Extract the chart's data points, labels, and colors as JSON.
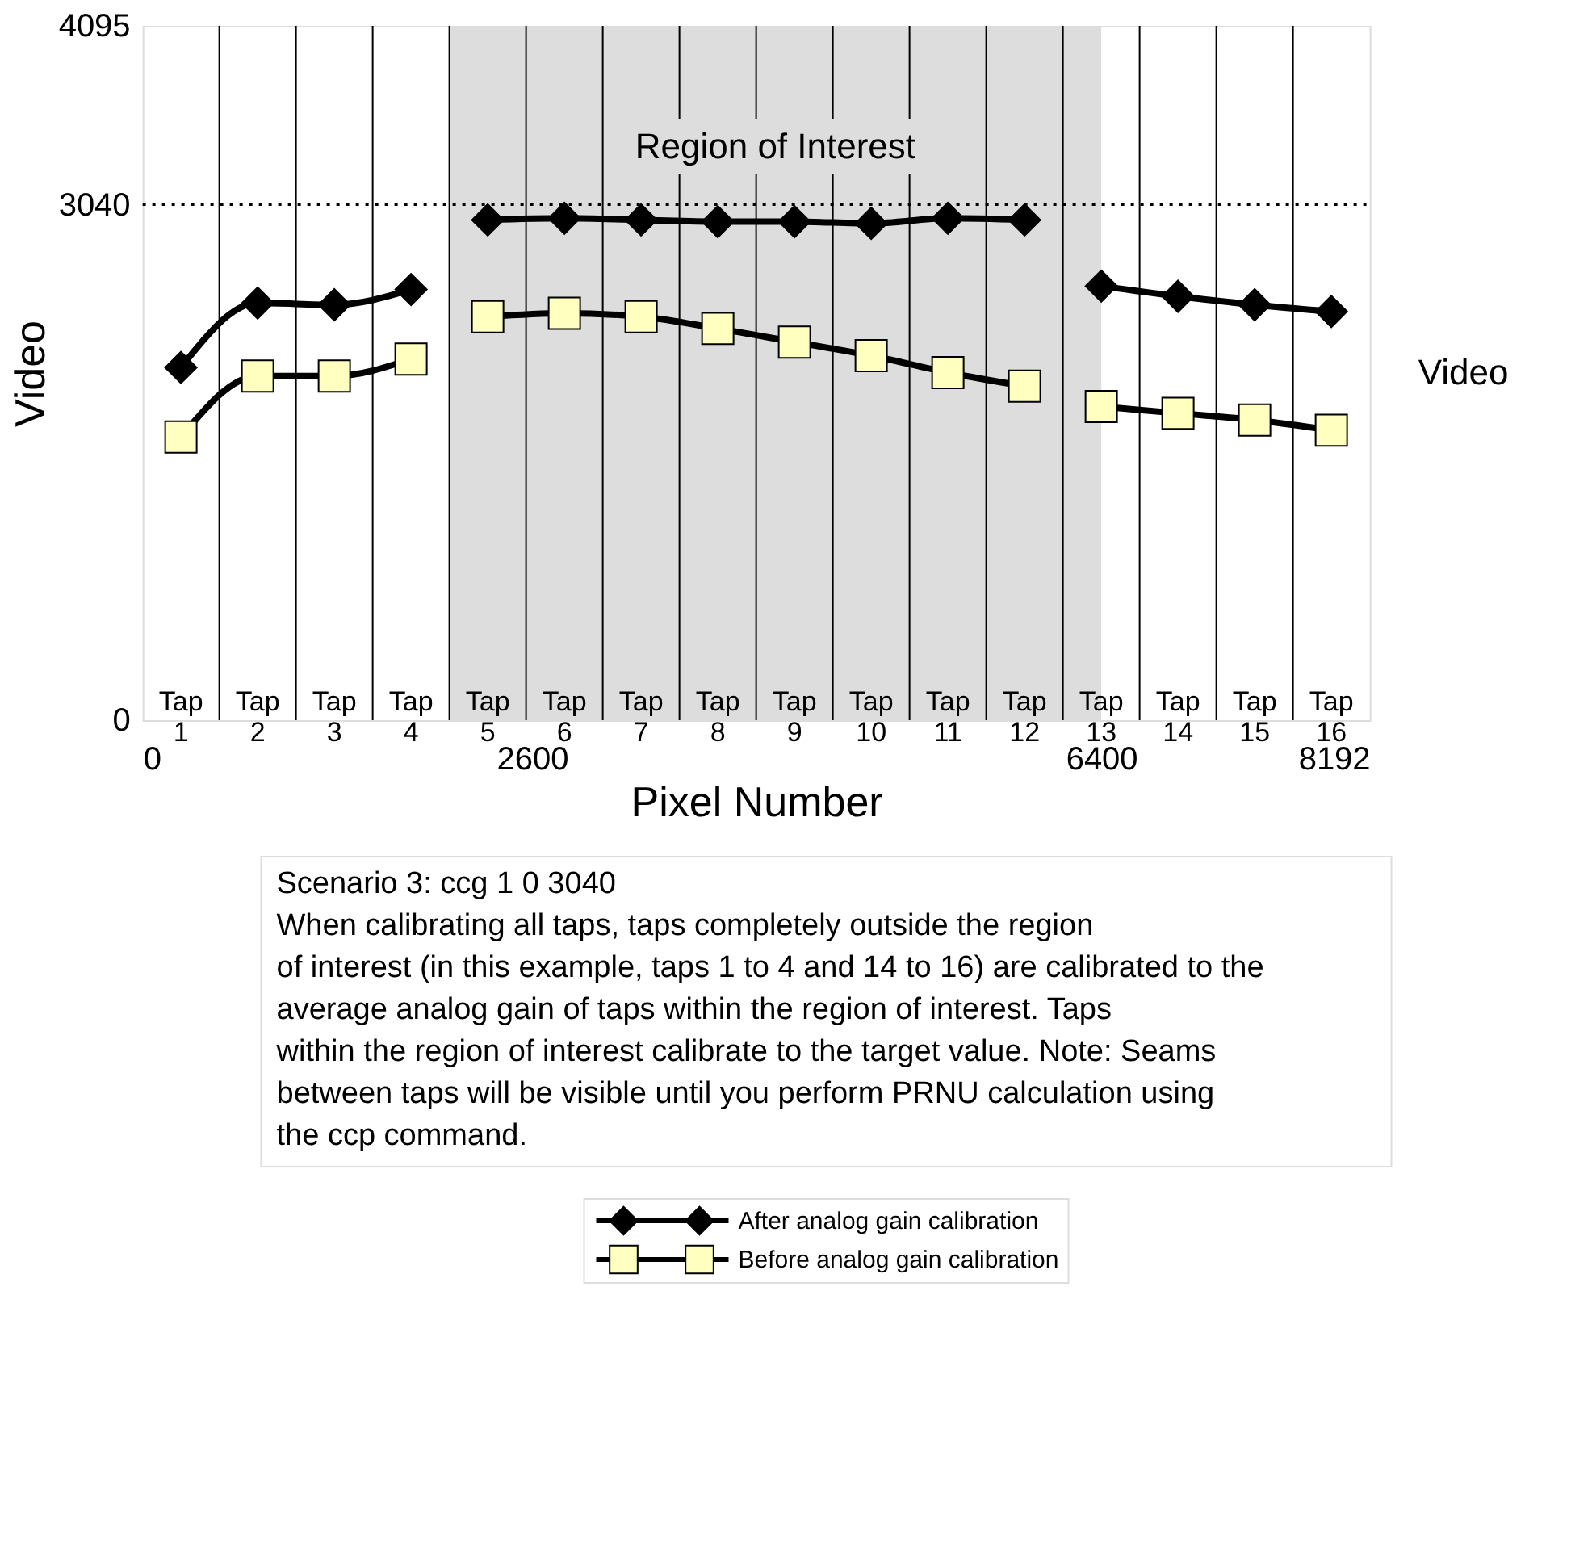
{
  "chart_data": {
    "type": "line",
    "xlabel": "Pixel Number",
    "ylabel": "Video",
    "y2label": "Video",
    "xlim": [
      0,
      8192
    ],
    "xticks": [
      0,
      2600,
      6400,
      8192
    ],
    "ylim": [
      0,
      4095
    ],
    "yticks": [
      0,
      3040,
      4095
    ],
    "grid": false,
    "legend": "bottom",
    "line_style": "solid",
    "x": [
      256,
      768,
      1280,
      1792,
      2048,
      2304,
      2816,
      3328,
      3840,
      4352,
      4864,
      5376,
      5888,
      6144,
      6400,
      6912,
      7424,
      7936
    ],
    "series": [
      {
        "name": "After analog gain calibration",
        "color": "#000000",
        "marker": "diamond",
        "values": [
          2080,
          2460,
          2450,
          2540,
          null,
          2950,
          2960,
          2950,
          2940,
          2940,
          2930,
          2960,
          2950,
          null,
          2560,
          2500,
          2450,
          2410
        ]
      },
      {
        "name": "Before analog gain calibration",
        "color": "#ffffc0",
        "marker": "square",
        "values": [
          1670,
          2030,
          2030,
          2130,
          null,
          2380,
          2400,
          2380,
          2310,
          2230,
          2150,
          2050,
          1970,
          null,
          1850,
          1810,
          1770,
          1710
        ]
      }
    ],
    "bands": [
      {
        "axis": "x",
        "from": 2048,
        "to": 6400,
        "label": "Region of Interest",
        "color": "#dddddd"
      }
    ],
    "ref_lines": [
      {
        "axis": "y",
        "value": 3040,
        "label": null,
        "line_style": "dotted"
      },
      {
        "axis": "x",
        "value": 512,
        "label": null
      },
      {
        "axis": "x",
        "value": 1024,
        "label": null
      },
      {
        "axis": "x",
        "value": 1536,
        "label": null
      },
      {
        "axis": "x",
        "value": 2048,
        "label": null
      },
      {
        "axis": "x",
        "value": 2560,
        "label": null
      },
      {
        "axis": "x",
        "value": 3072,
        "label": null
      },
      {
        "axis": "x",
        "value": 3584,
        "label": null
      },
      {
        "axis": "x",
        "value": 4096,
        "label": null
      },
      {
        "axis": "x",
        "value": 4608,
        "label": null
      },
      {
        "axis": "x",
        "value": 5120,
        "label": null
      },
      {
        "axis": "x",
        "value": 5632,
        "label": null
      },
      {
        "axis": "x",
        "value": 6144,
        "label": null
      },
      {
        "axis": "x",
        "value": 6656,
        "label": null
      },
      {
        "axis": "x",
        "value": 7168,
        "label": null
      },
      {
        "axis": "x",
        "value": 7680,
        "label": null
      }
    ],
    "annotations": [
      "Tap\n1",
      "Tap\n2",
      "Tap\n3",
      "Tap\n4",
      "Tap\n5",
      "Tap\n6",
      "Tap\n7",
      "Tap\n8",
      "Tap\n9",
      "Tap\n10",
      "Tap\n11",
      "Tap\n12",
      "Tap\n13",
      "Tap\n14",
      "Tap\n15",
      "Tap\n16",
      "Scenario 3: ccg 1 0 3040\nWhen calibrating all taps, taps completely outside the region\nof interest (in this example, taps 1 to 4 and 14 to 16) are calibrated to the\naverage analog gain of taps within the region of interest. Taps\nwithin the region of interest calibrate to the target value. Note: Seams\nbetween taps will be visible until you perform PRNU calculation using\nthe ccp command."
    ]
  }
}
